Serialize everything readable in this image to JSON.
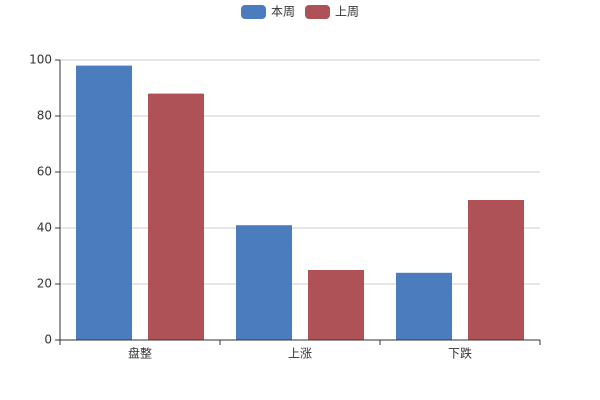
{
  "chart_data": {
    "type": "bar",
    "categories": [
      "盘整",
      "上涨",
      "下跌"
    ],
    "series": [
      {
        "name": "本周",
        "color": "#4b7dbe",
        "values": [
          98,
          41,
          24
        ]
      },
      {
        "name": "上周",
        "color": "#ae5257",
        "values": [
          88,
          25,
          50
        ]
      }
    ],
    "ylim": [
      0,
      100
    ],
    "yticks": [
      0,
      20,
      40,
      60,
      80,
      100
    ],
    "grid": true,
    "legend": "top"
  }
}
